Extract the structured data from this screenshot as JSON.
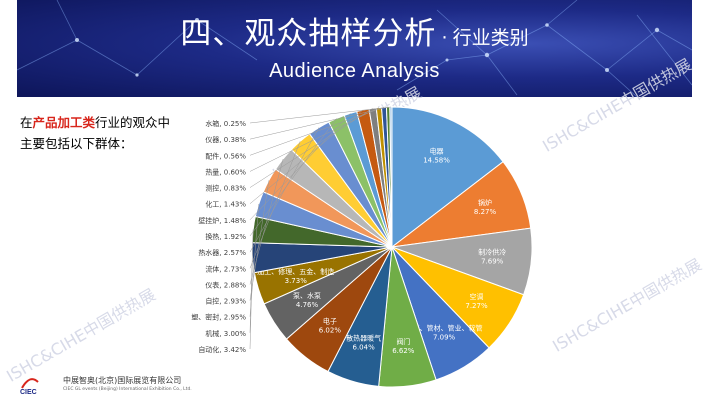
{
  "header": {
    "title": "四、观众抽样分析",
    "title_sep": "·",
    "subtitle": "行业类别",
    "title_en": "Audience Analysis"
  },
  "intro": {
    "prefix": "在",
    "highlight": "产品加工类",
    "suffix": "行业的观众中",
    "line2": "主要包括以下群体："
  },
  "watermark": "ISHC&CIHE中国供热展",
  "footer": {
    "logo_text": "CIEC",
    "company_cn": "中展智奥(北京)国际展览有限公司",
    "company_en": "CIEC GL events (Beijing) International Exhibition Co., Ltd."
  },
  "colors": {
    "banner_dark": "#0d1559",
    "banner_light": "#3b4fb4",
    "highlight": "#d8261c"
  },
  "chart_data": {
    "type": "pie",
    "categories": [
      "电器",
      "锅炉",
      "制冷供冷",
      "空调",
      "管道、管材、管业、软管",
      "阀门",
      "散热器暖气",
      "电子",
      "泵、水泵",
      "加工、修理、五金、制造",
      "自动化",
      "机械",
      "塑、密封",
      "自控",
      "仪表",
      "流体",
      "热水器",
      "换热",
      "壁挂炉",
      "化工",
      "测控",
      "热量",
      "配件",
      "仪器",
      "水箱"
    ],
    "values": [
      14.58,
      8.27,
      7.69,
      7.27,
      7.09,
      6.62,
      6.04,
      6.02,
      4.76,
      3.73,
      3.42,
      3.0,
      2.95,
      2.93,
      2.88,
      2.73,
      2.57,
      1.92,
      1.48,
      1.43,
      0.83,
      0.6,
      0.56,
      0.38,
      0.25
    ],
    "labels": [
      "14.58%",
      "8.27%",
      "7.69%",
      "7.27%",
      "7.09%",
      "6.62%",
      "6.04%",
      "6.02%",
      "4.76%",
      "3.73%",
      "3.42%",
      "3.00%",
      "2.95%",
      "2.93%",
      "2.88%",
      "2.73%",
      "2.57%",
      "1.92%",
      "1.48%",
      "1.43%",
      "0.83%",
      "0.60%",
      "0.56%",
      "0.38%",
      "0.25%"
    ],
    "colors": [
      "#5b9bd5",
      "#ed7d31",
      "#a5a5a5",
      "#ffc000",
      "#4472c4",
      "#70ad47",
      "#255e91",
      "#9e480e",
      "#636363",
      "#997300",
      "#264478",
      "#43682b",
      "#698ed0",
      "#f1975a",
      "#b7b7b7",
      "#ffcd33",
      "#698ed0",
      "#8cc168",
      "#5b9bd5",
      "#c55a11",
      "#7f7f7f",
      "#bf9000",
      "#2f5597",
      "#548235",
      "#9dc3e6"
    ],
    "start_angle_deg": 0,
    "direction": "clockwise",
    "legend": "none"
  }
}
